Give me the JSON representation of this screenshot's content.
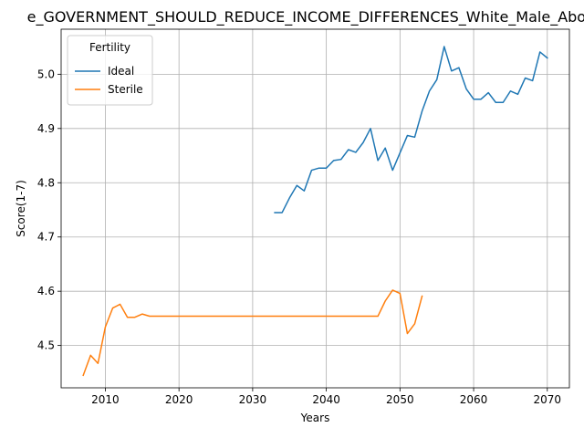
{
  "chart_data": {
    "type": "line",
    "title": "e_GOVERNMENT_SHOULD_REDUCE_INCOME_DIFFERENCES_White_Male_Above",
    "xlabel": "Years",
    "ylabel": "Score(1-7)",
    "xlim": [
      2004,
      2073
    ],
    "ylim": [
      4.422,
      5.083
    ],
    "xticks": [
      2010,
      2020,
      2030,
      2040,
      2050,
      2060,
      2070
    ],
    "yticks": [
      4.5,
      4.6,
      4.7,
      4.8,
      4.9,
      5.0
    ],
    "ytick_labels": [
      "4.5",
      "4.6",
      "4.7",
      "4.8",
      "4.9",
      "5.0"
    ],
    "grid": true,
    "legend": {
      "title": "Fertility",
      "placement": "top-left"
    },
    "series": [
      {
        "name": "Ideal",
        "color": "#1f77b4",
        "x": [
          2033,
          2034,
          2035,
          2036,
          2037,
          2038,
          2039,
          2040,
          2041,
          2042,
          2043,
          2044,
          2045,
          2046,
          2047,
          2048,
          2049,
          2050,
          2051,
          2052,
          2053,
          2054,
          2055,
          2056,
          2057,
          2058,
          2059,
          2060,
          2061,
          2062,
          2063,
          2064,
          2065,
          2066,
          2067,
          2068,
          2069,
          2070
        ],
        "y": [
          4.745,
          4.745,
          4.772,
          4.795,
          4.785,
          4.823,
          4.827,
          4.827,
          4.841,
          4.843,
          4.861,
          4.856,
          4.874,
          4.9,
          4.841,
          4.864,
          4.823,
          4.855,
          4.887,
          4.884,
          4.932,
          4.969,
          4.99,
          5.051,
          5.006,
          5.012,
          4.973,
          4.954,
          4.954,
          4.966,
          4.948,
          4.948,
          4.969,
          4.963,
          4.993,
          4.988,
          5.041,
          5.03
        ]
      },
      {
        "name": "Sterile",
        "color": "#ff7f0e",
        "x": [
          2007,
          2008,
          2009,
          2010,
          2011,
          2012,
          2013,
          2014,
          2015,
          2016,
          2017,
          2018,
          2019,
          2020,
          2021,
          2022,
          2023,
          2024,
          2025,
          2026,
          2027,
          2028,
          2029,
          2030,
          2031,
          2032,
          2033,
          2034,
          2035,
          2036,
          2037,
          2038,
          2039,
          2040,
          2041,
          2042,
          2043,
          2044,
          2045,
          2046,
          2047,
          2048,
          2049,
          2050,
          2051,
          2052,
          2053
        ],
        "y": [
          4.445,
          4.482,
          4.467,
          4.534,
          4.569,
          4.576,
          4.552,
          4.552,
          4.558,
          4.554,
          4.554,
          4.554,
          4.554,
          4.554,
          4.554,
          4.554,
          4.554,
          4.554,
          4.554,
          4.554,
          4.554,
          4.554,
          4.554,
          4.554,
          4.554,
          4.554,
          4.554,
          4.554,
          4.554,
          4.554,
          4.554,
          4.554,
          4.554,
          4.554,
          4.554,
          4.554,
          4.554,
          4.554,
          4.554,
          4.554,
          4.554,
          4.582,
          4.602,
          4.596,
          4.522,
          4.54,
          4.591
        ]
      }
    ]
  }
}
